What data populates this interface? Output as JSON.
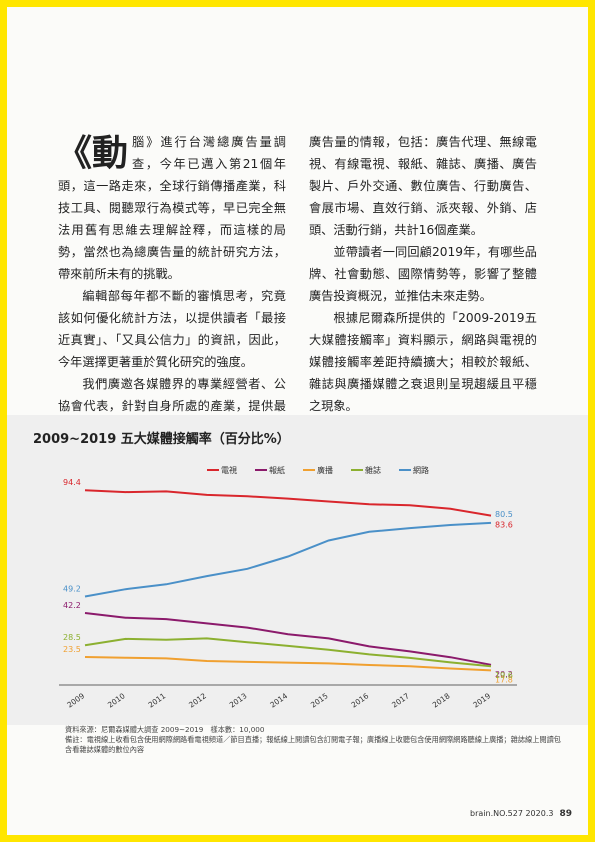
{
  "article": {
    "dropcap": "《動",
    "left": [
      "腦》進行台灣總廣告量調查，今年已邁入第21個年頭，這一路走來，全球行銷傳播產業，科技工具、閱聽眾行為模式等，早已完全無法用舊有思維去理解詮釋，而這樣的局勢，當然也為總廣告量的統計研究方法，帶來前所未有的挑戰。",
      "編輯部每年都不斷的審慎思考，究竟該如何優化統計方法，以提供讀者「最接近真實」、「又具公信力」的資訊，因此，今年選擇更著重於質化研究的強度。",
      "我們廣邀各媒體界的專業經營者、公協會代表，針對自身所處的產業，提供最貼近實際"
    ],
    "right": [
      "廣告量的情報，包括：廣告代理、無線電視、有線電視、報紙、雜誌、廣播、廣告製片、戶外交通、數位廣告、行動廣告、會展市場、直效行銷、派夾報、外銷、店頭、活動行銷，共計16個產業。",
      "並帶讀者一同回顧2019年，有哪些品牌、社會動態、國際情勢等，影響了整體廣告投資概況，並推估未來走勢。",
      "根據尼爾森所提供的「2009-2019五大媒體接觸率」資料顯示，網路與電視的媒體接觸率差距持續擴大；相較於報紙、雜誌與廣播媒體之衰退則呈現趨緩且平穩之現象。"
    ]
  },
  "chart_data": {
    "type": "line",
    "title": "2009~2019 五大媒體接觸率（百分比%）",
    "x": [
      2009,
      2010,
      2011,
      2012,
      2013,
      2014,
      2015,
      2016,
      2017,
      2018,
      2019
    ],
    "ylim": [
      15,
      100
    ],
    "series": [
      {
        "name": "電視",
        "color": "#d9262c",
        "values": [
          94.4,
          93.6,
          93.9,
          92.4,
          91.8,
          90.8,
          89.6,
          88.4,
          88.0,
          86.5,
          83.6
        ]
      },
      {
        "name": "報紙",
        "color": "#8b1a6b",
        "values": [
          42.2,
          40.2,
          39.6,
          37.8,
          36.0,
          33.2,
          31.4,
          28.0,
          25.9,
          23.4,
          20.2
        ]
      },
      {
        "name": "廣播",
        "color": "#f0a030",
        "values": [
          23.5,
          23.2,
          22.9,
          21.8,
          21.4,
          21.1,
          20.8,
          20.1,
          19.6,
          18.6,
          17.8
        ]
      },
      {
        "name": "雜誌",
        "color": "#8cb030",
        "values": [
          28.5,
          31.2,
          30.8,
          31.4,
          29.8,
          28.2,
          26.6,
          24.6,
          23.1,
          21.2,
          19.6
        ]
      },
      {
        "name": "網路",
        "color": "#4a90c8",
        "values": [
          49.2,
          52.3,
          54.4,
          57.9,
          61.0,
          66.2,
          73.0,
          76.7,
          78.3,
          79.6,
          80.5
        ]
      }
    ]
  },
  "notes": {
    "source": "資料來源：尼爾森媒體大調查 2009~2019　樣本數：10,000",
    "remark": "備註：電視線上收看包含使用網際網路看電視頻道／節目直播；報紙線上閱讀包含訂閱電子報；廣播線上收聽包含使用網際網路聽線上廣播；雜誌線上閱讀包含看雜誌媒體的數位內容"
  },
  "footer": {
    "issue": "brain.NO.527 2020.3",
    "page": "89"
  }
}
